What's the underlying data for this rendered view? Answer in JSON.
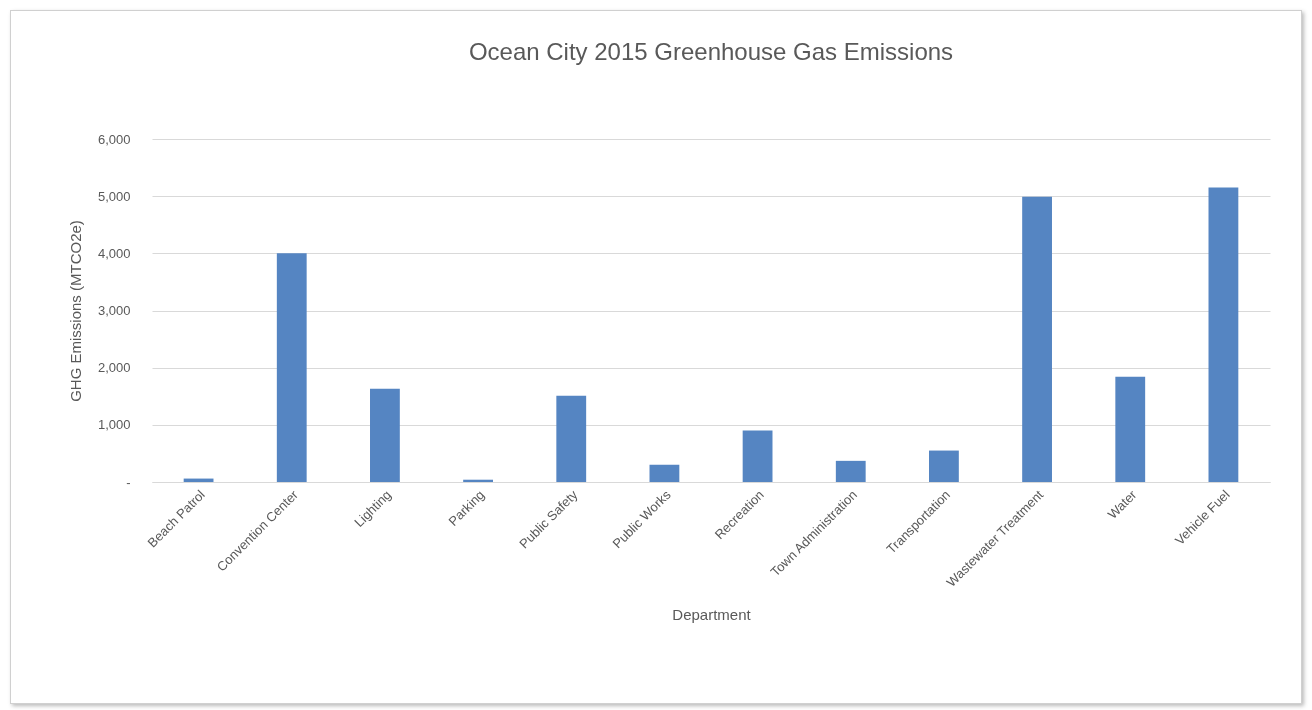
{
  "chart_data": {
    "type": "bar",
    "title": "Ocean City 2015 Greenhouse Gas Emissions",
    "xlabel": "Department",
    "ylabel": "GHG Emissions (MTCO2e)",
    "categories": [
      "Beach Patrol",
      "Convention Center",
      "Lighting",
      "Parking",
      "Public Safety",
      "Public Works",
      "Recreation",
      "Town Administration",
      "Transportation",
      "Wastewater Treatment",
      "Water",
      "Vehicle Fuel"
    ],
    "values": [
      60,
      4000,
      1630,
      40,
      1510,
      300,
      900,
      370,
      550,
      4990,
      1840,
      5150
    ],
    "color": "#5585c2",
    "ylim": [
      0,
      6000
    ],
    "yticks": [
      {
        "value": 0,
        "label": "-"
      },
      {
        "value": 1000,
        "label": "1,000"
      },
      {
        "value": 2000,
        "label": "2,000"
      },
      {
        "value": 3000,
        "label": "3,000"
      },
      {
        "value": 4000,
        "label": "4,000"
      },
      {
        "value": 5000,
        "label": "5,000"
      },
      {
        "value": 6000,
        "label": "6,000"
      }
    ],
    "grid": "y"
  }
}
